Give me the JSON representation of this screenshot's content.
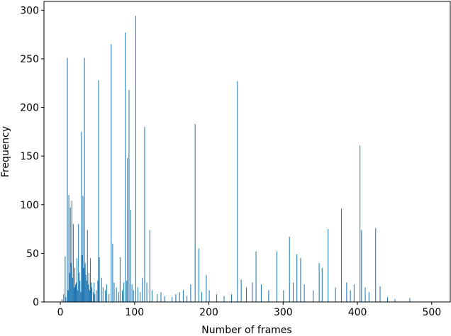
{
  "chart_data": {
    "type": "bar",
    "x_label": "Number of frames",
    "y_label": "Frequency",
    "color": "#1f77b4",
    "x": [
      2,
      4,
      6,
      7,
      9,
      10,
      11,
      12,
      13,
      14,
      15,
      16,
      17,
      18,
      19,
      20,
      21,
      22,
      23,
      24,
      25,
      26,
      27,
      28,
      29,
      30,
      31,
      32,
      33,
      34,
      35,
      36,
      37,
      38,
      39,
      40,
      41,
      42,
      44,
      45,
      46,
      48,
      50,
      51,
      52,
      55,
      57,
      60,
      62,
      65,
      68,
      70,
      72,
      75,
      78,
      80,
      83,
      85,
      87,
      89,
      90,
      92,
      94,
      96,
      98,
      101,
      104,
      107,
      110,
      113,
      116,
      120,
      123,
      130,
      135,
      140,
      150,
      155,
      160,
      165,
      170,
      175,
      181,
      186,
      190,
      196,
      200,
      210,
      220,
      230,
      238,
      243,
      250,
      258,
      263,
      270,
      280,
      291,
      300,
      308,
      313,
      318,
      323,
      328,
      340,
      348,
      352,
      360,
      370,
      378,
      385,
      390,
      395,
      403,
      405,
      410,
      415,
      424,
      430,
      440,
      450,
      470
    ],
    "values": [
      3,
      8,
      47,
      5,
      251,
      12,
      110,
      30,
      97,
      40,
      104,
      25,
      80,
      15,
      35,
      18,
      20,
      45,
      12,
      80,
      30,
      22,
      10,
      175,
      48,
      109,
      35,
      251,
      40,
      28,
      22,
      74,
      18,
      30,
      12,
      45,
      20,
      15,
      10,
      20,
      8,
      12,
      22,
      228,
      46,
      25,
      15,
      12,
      18,
      8,
      265,
      60,
      20,
      15,
      10,
      46,
      12,
      20,
      277,
      22,
      148,
      218,
      95,
      18,
      12,
      294,
      15,
      10,
      25,
      180,
      20,
      74,
      12,
      8,
      10,
      6,
      5,
      8,
      10,
      12,
      6,
      18,
      183,
      55,
      10,
      28,
      12,
      8,
      6,
      8,
      227,
      23,
      15,
      20,
      52,
      18,
      12,
      52,
      12,
      67,
      20,
      49,
      45,
      18,
      12,
      40,
      35,
      75,
      15,
      96,
      20,
      12,
      18,
      161,
      74,
      15,
      10,
      76,
      16,
      5,
      3,
      4
    ],
    "xlim": [
      -22,
      525
    ],
    "ylim": [
      0,
      309
    ],
    "xticks": [
      0,
      100,
      200,
      300,
      400,
      500
    ],
    "yticks": [
      0,
      50,
      100,
      150,
      200,
      250,
      300
    ]
  }
}
